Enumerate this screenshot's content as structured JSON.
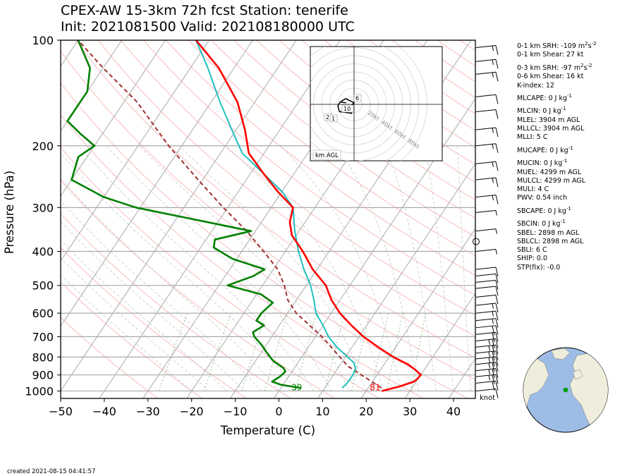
{
  "title_line1": "CPEX-AW 15-3km  72h fcst  Station: tenerife",
  "title_line2": "Init: 2021081500  Valid: 202108180000 UTC",
  "created": "created 2021-08-15 04:41:57",
  "wind_unit": "knot",
  "stats": [
    [
      "0-1 km SRH: -109 m",
      "2",
      "s",
      "-2",
      ""
    ],
    [
      "0-1 km Shear: 27 kt"
    ],
    [
      "0-3 km SRH: -97 m",
      "2",
      "s",
      "-2",
      ""
    ],
    [
      "0-6 km Shear: 16 kt"
    ],
    [
      "K-index: 12"
    ],
    [
      "MLCAPE: 0 J kg",
      "-1",
      ""
    ],
    [
      "MLCIN: 0 J kg",
      "-1",
      ""
    ],
    [
      "MLEL: 3904 m AGL"
    ],
    [
      "MLLCL: 3904 m AGL"
    ],
    [
      "MLLI: 5 C"
    ],
    [
      "MUCAPE: 0 J kg",
      "-1",
      ""
    ],
    [
      "MUCIN: 0 J kg",
      "-1",
      ""
    ],
    [
      "MUEL: 4299 m AGL"
    ],
    [
      "MULCL: 4299 m AGL"
    ],
    [
      "MULI: 4 C"
    ],
    [
      "PWV: 0.54 inch"
    ],
    [
      "SBCAPE: 0 J kg",
      "-1",
      ""
    ],
    [
      "SBCIN: 0 J kg",
      "-1",
      ""
    ],
    [
      "SBEL: 2898 m AGL"
    ],
    [
      "SBLCL: 2898 m AGL"
    ],
    [
      "SBLI: 6 C"
    ],
    [
      "SHIP: 0.0"
    ],
    [
      "STP(fix): -0.0"
    ]
  ],
  "chart_data": {
    "type": "line",
    "subtype": "skew-t log-p sounding",
    "xlabel": "Temperature (C)",
    "ylabel": "Pressure (hPa)",
    "xlim": [
      -50,
      45
    ],
    "ylim": [
      1050,
      100
    ],
    "y_scale": "log",
    "x_ticks": [
      -50,
      -40,
      -30,
      -20,
      -10,
      0,
      10,
      20,
      30,
      40
    ],
    "y_ticks": [
      100,
      200,
      300,
      400,
      500,
      600,
      700,
      800,
      900,
      1000
    ],
    "skew_deg_per_decade": 54,
    "surface_temperature_label": "81",
    "surface_dewpoint_label": "39",
    "colors": {
      "temperature": "#ff0000",
      "dewpoint": "#008000",
      "wetbulb": "#1fbfbf",
      "parcel": "#a03030",
      "isotherm": "#aaaaaa",
      "dry_adiabat": "#f4a0a0",
      "moist_adiabat": "#c8c8c8",
      "mixing_ratio": "#80c080"
    },
    "temperature_profile": [
      [
        1000,
        23.6
      ],
      [
        970,
        27.0
      ],
      [
        940,
        29.5
      ],
      [
        920,
        29.9
      ],
      [
        900,
        30.0
      ],
      [
        870,
        28.0
      ],
      [
        840,
        25.5
      ],
      [
        800,
        21.0
      ],
      [
        750,
        16.0
      ],
      [
        700,
        11.0
      ],
      [
        650,
        6.5
      ],
      [
        600,
        2.0
      ],
      [
        550,
        -2.0
      ],
      [
        500,
        -5.5
      ],
      [
        450,
        -11.0
      ],
      [
        400,
        -16.0
      ],
      [
        360,
        -21.0
      ],
      [
        330,
        -23.5
      ],
      [
        300,
        -25.0
      ],
      [
        270,
        -31.0
      ],
      [
        240,
        -37.0
      ],
      [
        210,
        -43.5
      ],
      [
        180,
        -48.0
      ],
      [
        150,
        -54.0
      ],
      [
        120,
        -63.5
      ],
      [
        100,
        -73.0
      ]
    ],
    "wetbulb_profile": [
      [
        980,
        14.0
      ],
      [
        950,
        14.4
      ],
      [
        900,
        14.5
      ],
      [
        860,
        14.0
      ],
      [
        830,
        12.8
      ],
      [
        800,
        10.5
      ],
      [
        750,
        6.5
      ],
      [
        700,
        3.0
      ],
      [
        650,
        0.0
      ],
      [
        600,
        -3.5
      ],
      [
        550,
        -6.0
      ],
      [
        500,
        -9.0
      ],
      [
        450,
        -13.0
      ],
      [
        400,
        -17.0
      ],
      [
        350,
        -21.0
      ],
      [
        300,
        -25.0
      ],
      [
        270,
        -30.0
      ],
      [
        240,
        -37.0
      ],
      [
        210,
        -45.0
      ],
      [
        180,
        -51.0
      ],
      [
        150,
        -58.0
      ],
      [
        120,
        -66.0
      ],
      [
        100,
        -73.0
      ]
    ],
    "dewpoint_profile": [
      [
        980,
        4.5
      ],
      [
        960,
        -0.5
      ],
      [
        940,
        -3.0
      ],
      [
        910,
        -2.0
      ],
      [
        880,
        -1.5
      ],
      [
        860,
        -2.5
      ],
      [
        820,
        -6.0
      ],
      [
        780,
        -8.5
      ],
      [
        740,
        -11.0
      ],
      [
        700,
        -14.0
      ],
      [
        680,
        -15.0
      ],
      [
        650,
        -13.5
      ],
      [
        630,
        -16.0
      ],
      [
        600,
        -16.0
      ],
      [
        560,
        -15.0
      ],
      [
        530,
        -19.0
      ],
      [
        500,
        -28.0
      ],
      [
        470,
        -23.5
      ],
      [
        450,
        -22.0
      ],
      [
        420,
        -31.0
      ],
      [
        390,
        -37.0
      ],
      [
        370,
        -38.0
      ],
      [
        350,
        -31.0
      ],
      [
        300,
        -61.0
      ],
      [
        280,
        -70.0
      ],
      [
        250,
        -80.0
      ],
      [
        215,
        -82.0
      ],
      [
        200,
        -80.0
      ],
      [
        185,
        -85.0
      ],
      [
        170,
        -90.0
      ],
      [
        140,
        -90.0
      ],
      [
        120,
        -93.0
      ],
      [
        100,
        -100.0
      ]
    ],
    "parcel_profile": [
      [
        980,
        23.0
      ],
      [
        850,
        12.0
      ],
      [
        700,
        1.5
      ],
      [
        600,
        -8.0
      ],
      [
        550,
        -12.0
      ],
      [
        500,
        -15.0
      ],
      [
        450,
        -19.0
      ],
      [
        400,
        -25.0
      ],
      [
        350,
        -32.0
      ],
      [
        300,
        -41.0
      ],
      [
        250,
        -51.0
      ],
      [
        200,
        -63.0
      ],
      [
        150,
        -77.0
      ],
      [
        120,
        -90.0
      ],
      [
        100,
        -100.0
      ]
    ],
    "wind_barbs": [
      {
        "p": 1000,
        "speed_kt": 10
      },
      {
        "p": 950,
        "speed_kt": 20
      },
      {
        "p": 910,
        "speed_kt": 25
      },
      {
        "p": 875,
        "speed_kt": 25
      },
      {
        "p": 840,
        "speed_kt": 25
      },
      {
        "p": 810,
        "speed_kt": 25
      },
      {
        "p": 780,
        "speed_kt": 25
      },
      {
        "p": 750,
        "speed_kt": 25
      },
      {
        "p": 720,
        "speed_kt": 25
      },
      {
        "p": 690,
        "speed_kt": 20
      },
      {
        "p": 660,
        "speed_kt": 20
      },
      {
        "p": 630,
        "speed_kt": 15
      },
      {
        "p": 600,
        "speed_kt": 15
      },
      {
        "p": 570,
        "speed_kt": 15
      },
      {
        "p": 540,
        "speed_kt": 10
      },
      {
        "p": 510,
        "speed_kt": 10
      },
      {
        "p": 490,
        "speed_kt": 10
      },
      {
        "p": 470,
        "speed_kt": 10
      },
      {
        "p": 450,
        "speed_kt": 10
      },
      {
        "p": 400,
        "speed_kt": 5
      },
      {
        "p": 375,
        "speed_kt": 0
      },
      {
        "p": 350,
        "speed_kt": 5
      },
      {
        "p": 310,
        "speed_kt": 5
      },
      {
        "p": 280,
        "speed_kt": 15
      },
      {
        "p": 250,
        "speed_kt": 15
      },
      {
        "p": 225,
        "speed_kt": 15
      },
      {
        "p": 200,
        "speed_kt": 15
      },
      {
        "p": 180,
        "speed_kt": 15
      },
      {
        "p": 160,
        "speed_kt": 10
      },
      {
        "p": 145,
        "speed_kt": 10
      },
      {
        "p": 125,
        "speed_kt": 15
      },
      {
        "p": 115,
        "speed_kt": 15
      },
      {
        "p": 105,
        "speed_kt": 15
      }
    ],
    "hodograph": {
      "ring_labels": [
        "20kt",
        "40kt",
        "60kt",
        "80kt"
      ],
      "height_labels": [
        "6",
        "10",
        "2",
        "1"
      ],
      "legend": "km AGL",
      "trace_kt": [
        [
          -10,
          2
        ],
        [
          -17,
          3
        ],
        [
          -20,
          -2
        ],
        [
          -18,
          -9
        ],
        [
          -10,
          -10
        ],
        [
          -3,
          -11
        ],
        [
          -4,
          -3
        ],
        [
          -2,
          0
        ],
        [
          0,
          2
        ],
        [
          -6,
          5
        ],
        [
          -10,
          7
        ],
        [
          -16,
          4
        ]
      ]
    },
    "location_map": {
      "marker_lat": 28.3,
      "marker_lon": -16.5,
      "marker_color": "#00a000"
    }
  }
}
